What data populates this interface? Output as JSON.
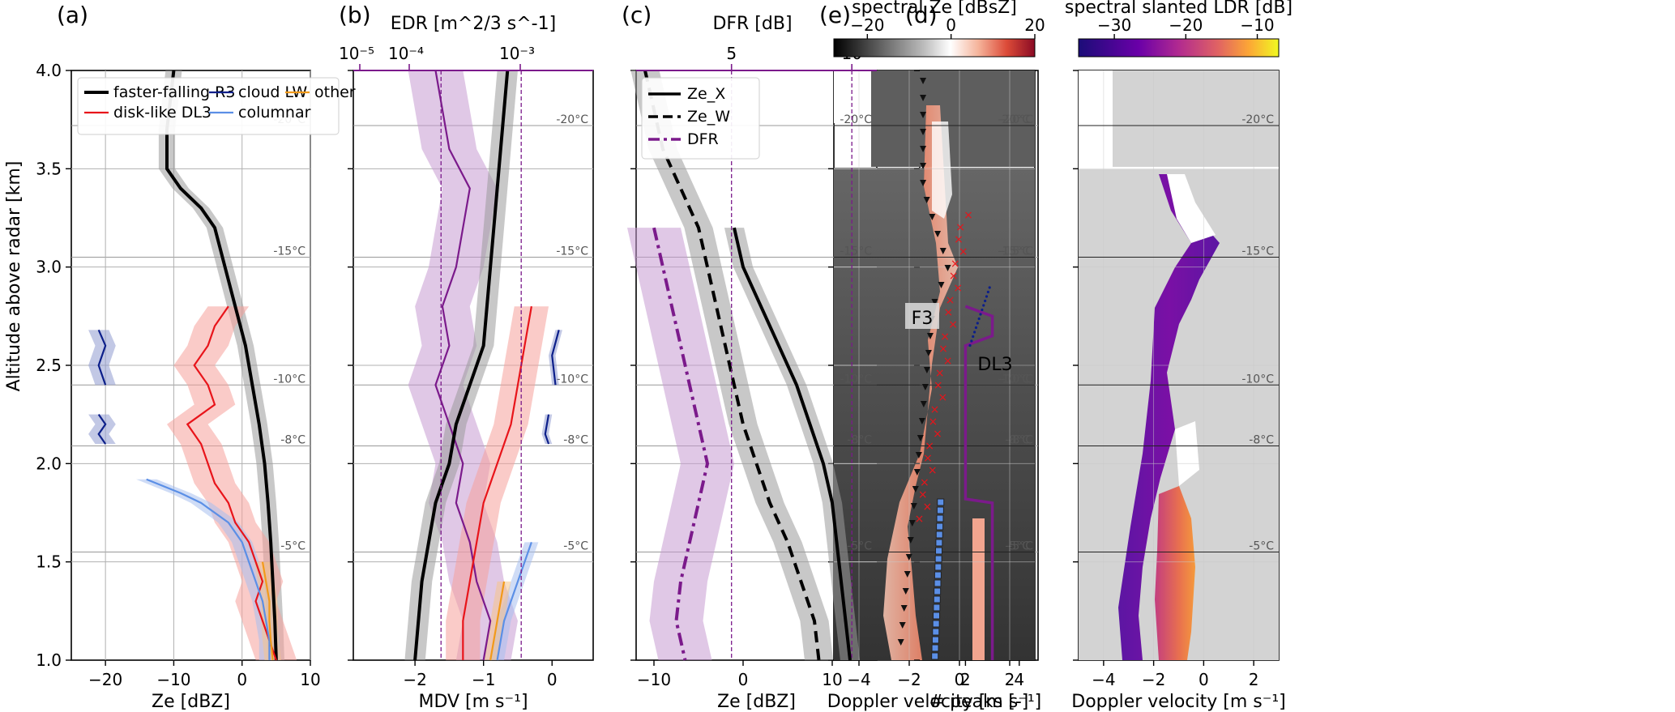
{
  "colors": {
    "r3": "#000000",
    "dl3": "#e8141a",
    "cloud_lw": "#0c1f8a",
    "columnar": "#5b8fe6",
    "other": "#f29a1a",
    "purple": "#7b1a8b",
    "gray_band": "#9a9a9a",
    "red_band": "#f6a09a",
    "blue_band": "#a7c0ee",
    "purple_band": "#c79ad2"
  },
  "panel_labels": [
    "(a)",
    "(b)",
    "(c)",
    "(d)",
    "(e)"
  ],
  "ylabel": "Altitude above radar [km]",
  "temperature_lines": [
    {
      "alt": 3.72,
      "label": "-20°C"
    },
    {
      "alt": 3.05,
      "label": "-15°C"
    },
    {
      "alt": 2.4,
      "label": "-10°C"
    },
    {
      "alt": 2.09,
      "label": "-8°C"
    },
    {
      "alt": 1.55,
      "label": "-5°C"
    }
  ],
  "chart_data": [
    {
      "id": "a",
      "type": "line",
      "xlabel": "Ze [dBZ]",
      "xlim": [
        -25,
        10
      ],
      "ylim": [
        1.0,
        4.0
      ],
      "xticks": [
        "-20",
        "-10",
        "0",
        "10"
      ],
      "yticks": [
        "1.0",
        "1.5",
        "2.0",
        "2.5",
        "3.0",
        "3.5",
        "4.0"
      ],
      "legend": [
        "faster-falling R3",
        "disk-like DL3",
        "cloud LW",
        "columnar",
        "other"
      ],
      "series": [
        {
          "name": "faster-falling R3",
          "key": "r3",
          "y": [
            4.0,
            3.85,
            3.7,
            3.5,
            3.4,
            3.3,
            3.2,
            3.0,
            2.8,
            2.6,
            2.4,
            2.2,
            2.0,
            1.8,
            1.6,
            1.4,
            1.2,
            1.0
          ],
          "x": [
            -10,
            -10.5,
            -11,
            -11,
            -9,
            -6,
            -4,
            -2.5,
            -1,
            0.5,
            1.5,
            2.5,
            3.3,
            3.8,
            4.2,
            4.5,
            4.8,
            5
          ],
          "spread": 1.2
        },
        {
          "name": "disk-like DL3",
          "key": "dl3",
          "y": [
            2.8,
            2.7,
            2.6,
            2.5,
            2.4,
            2.3,
            2.2,
            2.1,
            2.0,
            1.9,
            1.8,
            1.7,
            1.6,
            1.5,
            1.4,
            1.3,
            1.2,
            1.1,
            1.0
          ],
          "x": [
            -2,
            -4,
            -5,
            -7,
            -5,
            -4,
            -8,
            -6,
            -5,
            -4,
            -2,
            -1,
            1,
            2,
            3,
            2,
            3,
            4,
            5
          ],
          "spread": 3
        },
        {
          "name": "columnar",
          "key": "columnar",
          "y": [
            1.92,
            1.85,
            1.8,
            1.75,
            1.7,
            1.6,
            1.5,
            1.4,
            1.3,
            1.2,
            1.1,
            1.0
          ],
          "x": [
            -14,
            -9,
            -6,
            -4,
            -2,
            0,
            1,
            2,
            3,
            3.5,
            4,
            4
          ],
          "spread": 1.5
        },
        {
          "name": "other",
          "key": "other",
          "y": [
            1.5,
            1.4,
            1.3,
            1.2,
            1.1,
            1.0
          ],
          "x": [
            3,
            3.5,
            4,
            4,
            4.2,
            4.5
          ],
          "spread": 1.2
        },
        {
          "name": "cloud LW",
          "key": "cloud_lw",
          "segments": [
            {
              "y": [
                2.68,
                2.6,
                2.5,
                2.4
              ],
              "x": [
                -21,
                -20,
                -21,
                -20
              ]
            },
            {
              "y": [
                2.25,
                2.2,
                2.15,
                2.1
              ],
              "x": [
                -21,
                -20,
                -21,
                -20
              ]
            }
          ],
          "spread": 1.5
        }
      ]
    },
    {
      "id": "b",
      "type": "line",
      "xlabel": "MDV [m s⁻¹]",
      "xlim": [
        -2.9,
        0.6
      ],
      "ylim": [
        1.0,
        4.0
      ],
      "xticks": [
        "-2",
        "-1",
        "0"
      ],
      "top_axis_label": "EDR [m^2/3 s^-1]",
      "top_axis_ticks": [
        "10⁻⁵",
        "10⁻⁴",
        "10⁻³"
      ],
      "top_axis_vlines_mdv": [
        -1.62,
        -0.45
      ],
      "series": [
        {
          "name": "EDR",
          "key": "purple",
          "y": [
            4.0,
            3.8,
            3.6,
            3.4,
            3.2,
            3.0,
            2.8,
            2.6,
            2.4,
            2.2,
            2.0,
            1.8,
            1.6,
            1.4,
            1.2,
            1.0
          ],
          "x": [
            -1.7,
            -1.6,
            -1.5,
            -1.2,
            -1.3,
            -1.4,
            -1.6,
            -1.5,
            -1.7,
            -1.5,
            -1.3,
            -1.4,
            -1.2,
            -1.1,
            -0.9,
            -1.0
          ],
          "spread": 0.4
        },
        {
          "name": "faster-falling R3",
          "key": "r3",
          "y": [
            4.0,
            3.8,
            3.6,
            3.4,
            3.2,
            3.0,
            2.8,
            2.6,
            2.4,
            2.2,
            2.0,
            1.8,
            1.6,
            1.4,
            1.2,
            1.0
          ],
          "x": [
            -0.65,
            -0.7,
            -0.75,
            -0.8,
            -0.85,
            -0.9,
            -0.95,
            -1.0,
            -1.2,
            -1.4,
            -1.5,
            -1.7,
            -1.8,
            -1.9,
            -1.95,
            -2.0
          ],
          "spread": 0.15
        },
        {
          "name": "disk-like DL3",
          "key": "dl3",
          "y": [
            2.8,
            2.6,
            2.4,
            2.2,
            2.0,
            1.8,
            1.6,
            1.4,
            1.2,
            1.0
          ],
          "x": [
            -0.3,
            -0.4,
            -0.5,
            -0.6,
            -0.8,
            -1.0,
            -1.1,
            -1.2,
            -1.3,
            -1.3
          ],
          "spread": 0.25
        },
        {
          "name": "columnar",
          "key": "columnar",
          "y": [
            1.6,
            1.4,
            1.2,
            1.0
          ],
          "x": [
            -0.3,
            -0.5,
            -0.7,
            -0.8
          ],
          "spread": 0.1
        },
        {
          "name": "other",
          "key": "other",
          "y": [
            1.4,
            1.2,
            1.0
          ],
          "x": [
            -0.7,
            -0.8,
            -0.9
          ],
          "spread": 0.1
        },
        {
          "name": "cloud LW",
          "key": "cloud_lw",
          "segments": [
            {
              "y": [
                2.68,
                2.55,
                2.4
              ],
              "x": [
                0.1,
                0.0,
                0.05
              ]
            },
            {
              "y": [
                2.25,
                2.15,
                2.1
              ],
              "x": [
                -0.05,
                -0.1,
                -0.05
              ]
            }
          ],
          "spread": 0.05
        }
      ]
    },
    {
      "id": "c",
      "type": "line",
      "xlabel": "Ze [dBZ]",
      "xlim": [
        -12,
        15
      ],
      "ylim": [
        1.0,
        4.0
      ],
      "xticks": [
        "-10",
        "0",
        "10"
      ],
      "top_axis_label": "DFR [dB]",
      "top_axis_ticks": [
        "5",
        "10"
      ],
      "top_axis_vlines_ze": [
        -1.3,
        12.2
      ],
      "legend": [
        "Ze_X",
        "Ze_W",
        "DFR"
      ],
      "series": [
        {
          "name": "Ze_X",
          "key": "r3",
          "dash": "",
          "y": [
            3.2,
            3.0,
            2.8,
            2.6,
            2.4,
            2.2,
            2.0,
            1.8,
            1.6,
            1.4,
            1.2,
            1.0
          ],
          "x": [
            -1,
            0,
            2,
            4,
            6,
            7.5,
            9,
            10,
            10.5,
            11,
            11.5,
            12
          ],
          "spread": 1.1
        },
        {
          "name": "Ze_W",
          "key": "r3",
          "dash": "14,8",
          "y": [
            4.0,
            3.8,
            3.6,
            3.4,
            3.2,
            3.0,
            2.8,
            2.6,
            2.4,
            2.2,
            2.0,
            1.8,
            1.6,
            1.4,
            1.2,
            1.0
          ],
          "x": [
            -11,
            -10,
            -9,
            -7,
            -5,
            -4,
            -3,
            -2,
            -1,
            0,
            1.5,
            3,
            5,
            6.5,
            8,
            8.5
          ],
          "spread": 1.6
        },
        {
          "name": "DFR",
          "key": "purple",
          "dash": "16,6,4,6",
          "y": [
            3.2,
            3.0,
            2.8,
            2.6,
            2.4,
            2.2,
            2.0,
            1.8,
            1.6,
            1.4,
            1.2,
            1.0
          ],
          "x": [
            -10,
            -9,
            -8,
            -7,
            -6,
            -5,
            -4,
            -5,
            -6,
            -7,
            -7.5,
            -6.5
          ],
          "spread": 3
        }
      ]
    },
    {
      "id": "d",
      "type": "line",
      "xlabel": "# peaks [-]",
      "xlim": [
        0.3,
        4.7
      ],
      "ylim": [
        1.0,
        4.0
      ],
      "xticks": [
        "2",
        "4"
      ],
      "series": [
        {
          "name": "# peaks",
          "key": "purple",
          "step": true,
          "y": [
            2.8,
            2.75,
            2.65,
            2.6,
            1.82,
            1.8,
            1.0
          ],
          "x": [
            2,
            3,
            3,
            2,
            2,
            3,
            3
          ]
        }
      ]
    },
    {
      "id": "e1",
      "type": "heatmap",
      "xlabel": "Doppler velocity [m s⁻¹]",
      "xlim": [
        -5,
        3
      ],
      "ylim": [
        1.0,
        4.0
      ],
      "xticks": [
        "-4",
        "-2",
        "0",
        "2"
      ],
      "colorbar_label": "spectral Ze [dBsZ]",
      "colorbar_range": [
        -28,
        20
      ],
      "colorbar_ticks": [
        "-20",
        "0",
        "20"
      ],
      "annotations": [
        "F3",
        "DL3"
      ]
    },
    {
      "id": "e2",
      "type": "heatmap",
      "xlabel": "Doppler velocity [m s⁻¹]",
      "xlim": [
        -5,
        3
      ],
      "ylim": [
        1.0,
        4.0
      ],
      "xticks": [
        "-4",
        "-2",
        "0",
        "2"
      ],
      "colorbar_label": "spectral slanted LDR [dB]",
      "colorbar_range": [
        -35,
        -7
      ],
      "colorbar_ticks": [
        "-30",
        "-20",
        "-10"
      ]
    }
  ]
}
